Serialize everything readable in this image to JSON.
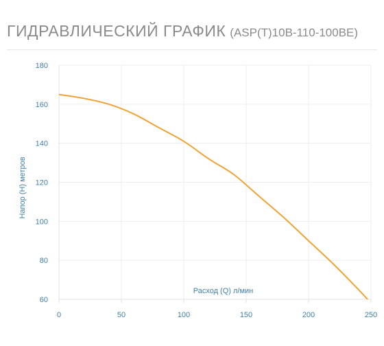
{
  "header": {
    "title": "ГИДРАВЛИЧЕСКИЙ ГРАФИК",
    "model": "(ASP(T)10B-110-100BE)"
  },
  "chart_data": {
    "type": "line",
    "title": "ГИДРАВЛИЧЕСКИЙ ГРАФИК (ASP(T)10B-110-100BE)",
    "xlabel": "Расход (Q) л/мин",
    "ylabel": "Напор (H) метров",
    "xlim": [
      0,
      250
    ],
    "ylim": [
      60,
      180
    ],
    "xticks": [
      0,
      50,
      100,
      150,
      200,
      250
    ],
    "yticks": [
      60,
      80,
      100,
      120,
      140,
      160,
      180
    ],
    "grid": true,
    "legend": "none",
    "series": [
      {
        "color": "#f0a232",
        "x": [
          0,
          20,
          40,
          60,
          80,
          100,
          120,
          140,
          160,
          180,
          200,
          220,
          240,
          250
        ],
        "y": [
          165,
          163,
          160,
          155,
          148,
          141,
          132,
          124,
          113,
          102,
          90,
          78,
          65,
          58
        ]
      }
    ],
    "colors": {
      "grid": "#ededed",
      "axis": "#e2e2e2",
      "tick_text": "#3f7fa6"
    }
  }
}
